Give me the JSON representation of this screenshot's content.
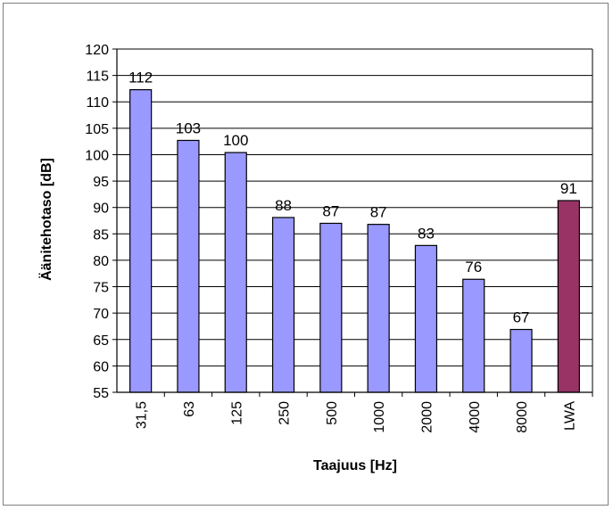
{
  "chart_data": {
    "type": "bar",
    "title": "",
    "xlabel": "Taajuus [Hz]",
    "ylabel": "Äänitehotaso [dB]",
    "categories": [
      "31,5",
      "63",
      "125",
      "250",
      "500",
      "1000",
      "2000",
      "4000",
      "8000",
      "LWA"
    ],
    "values": [
      112.3,
      102.7,
      100.4,
      88.1,
      87.0,
      86.8,
      82.8,
      76.4,
      66.9,
      91.3
    ],
    "data_labels": [
      "112",
      "103",
      "100",
      "88",
      "87",
      "87",
      "83",
      "76",
      "67",
      "91"
    ],
    "ylim": [
      55,
      120
    ],
    "yticks": [
      55,
      60,
      65,
      70,
      75,
      80,
      85,
      90,
      95,
      100,
      105,
      110,
      115,
      120
    ],
    "grid": true,
    "legend": "none",
    "colors": {
      "bar": "#9999ff",
      "highlight": "#993366",
      "grid": "#000000",
      "border": "#7f7f7f"
    },
    "highlight_category": "LWA"
  }
}
